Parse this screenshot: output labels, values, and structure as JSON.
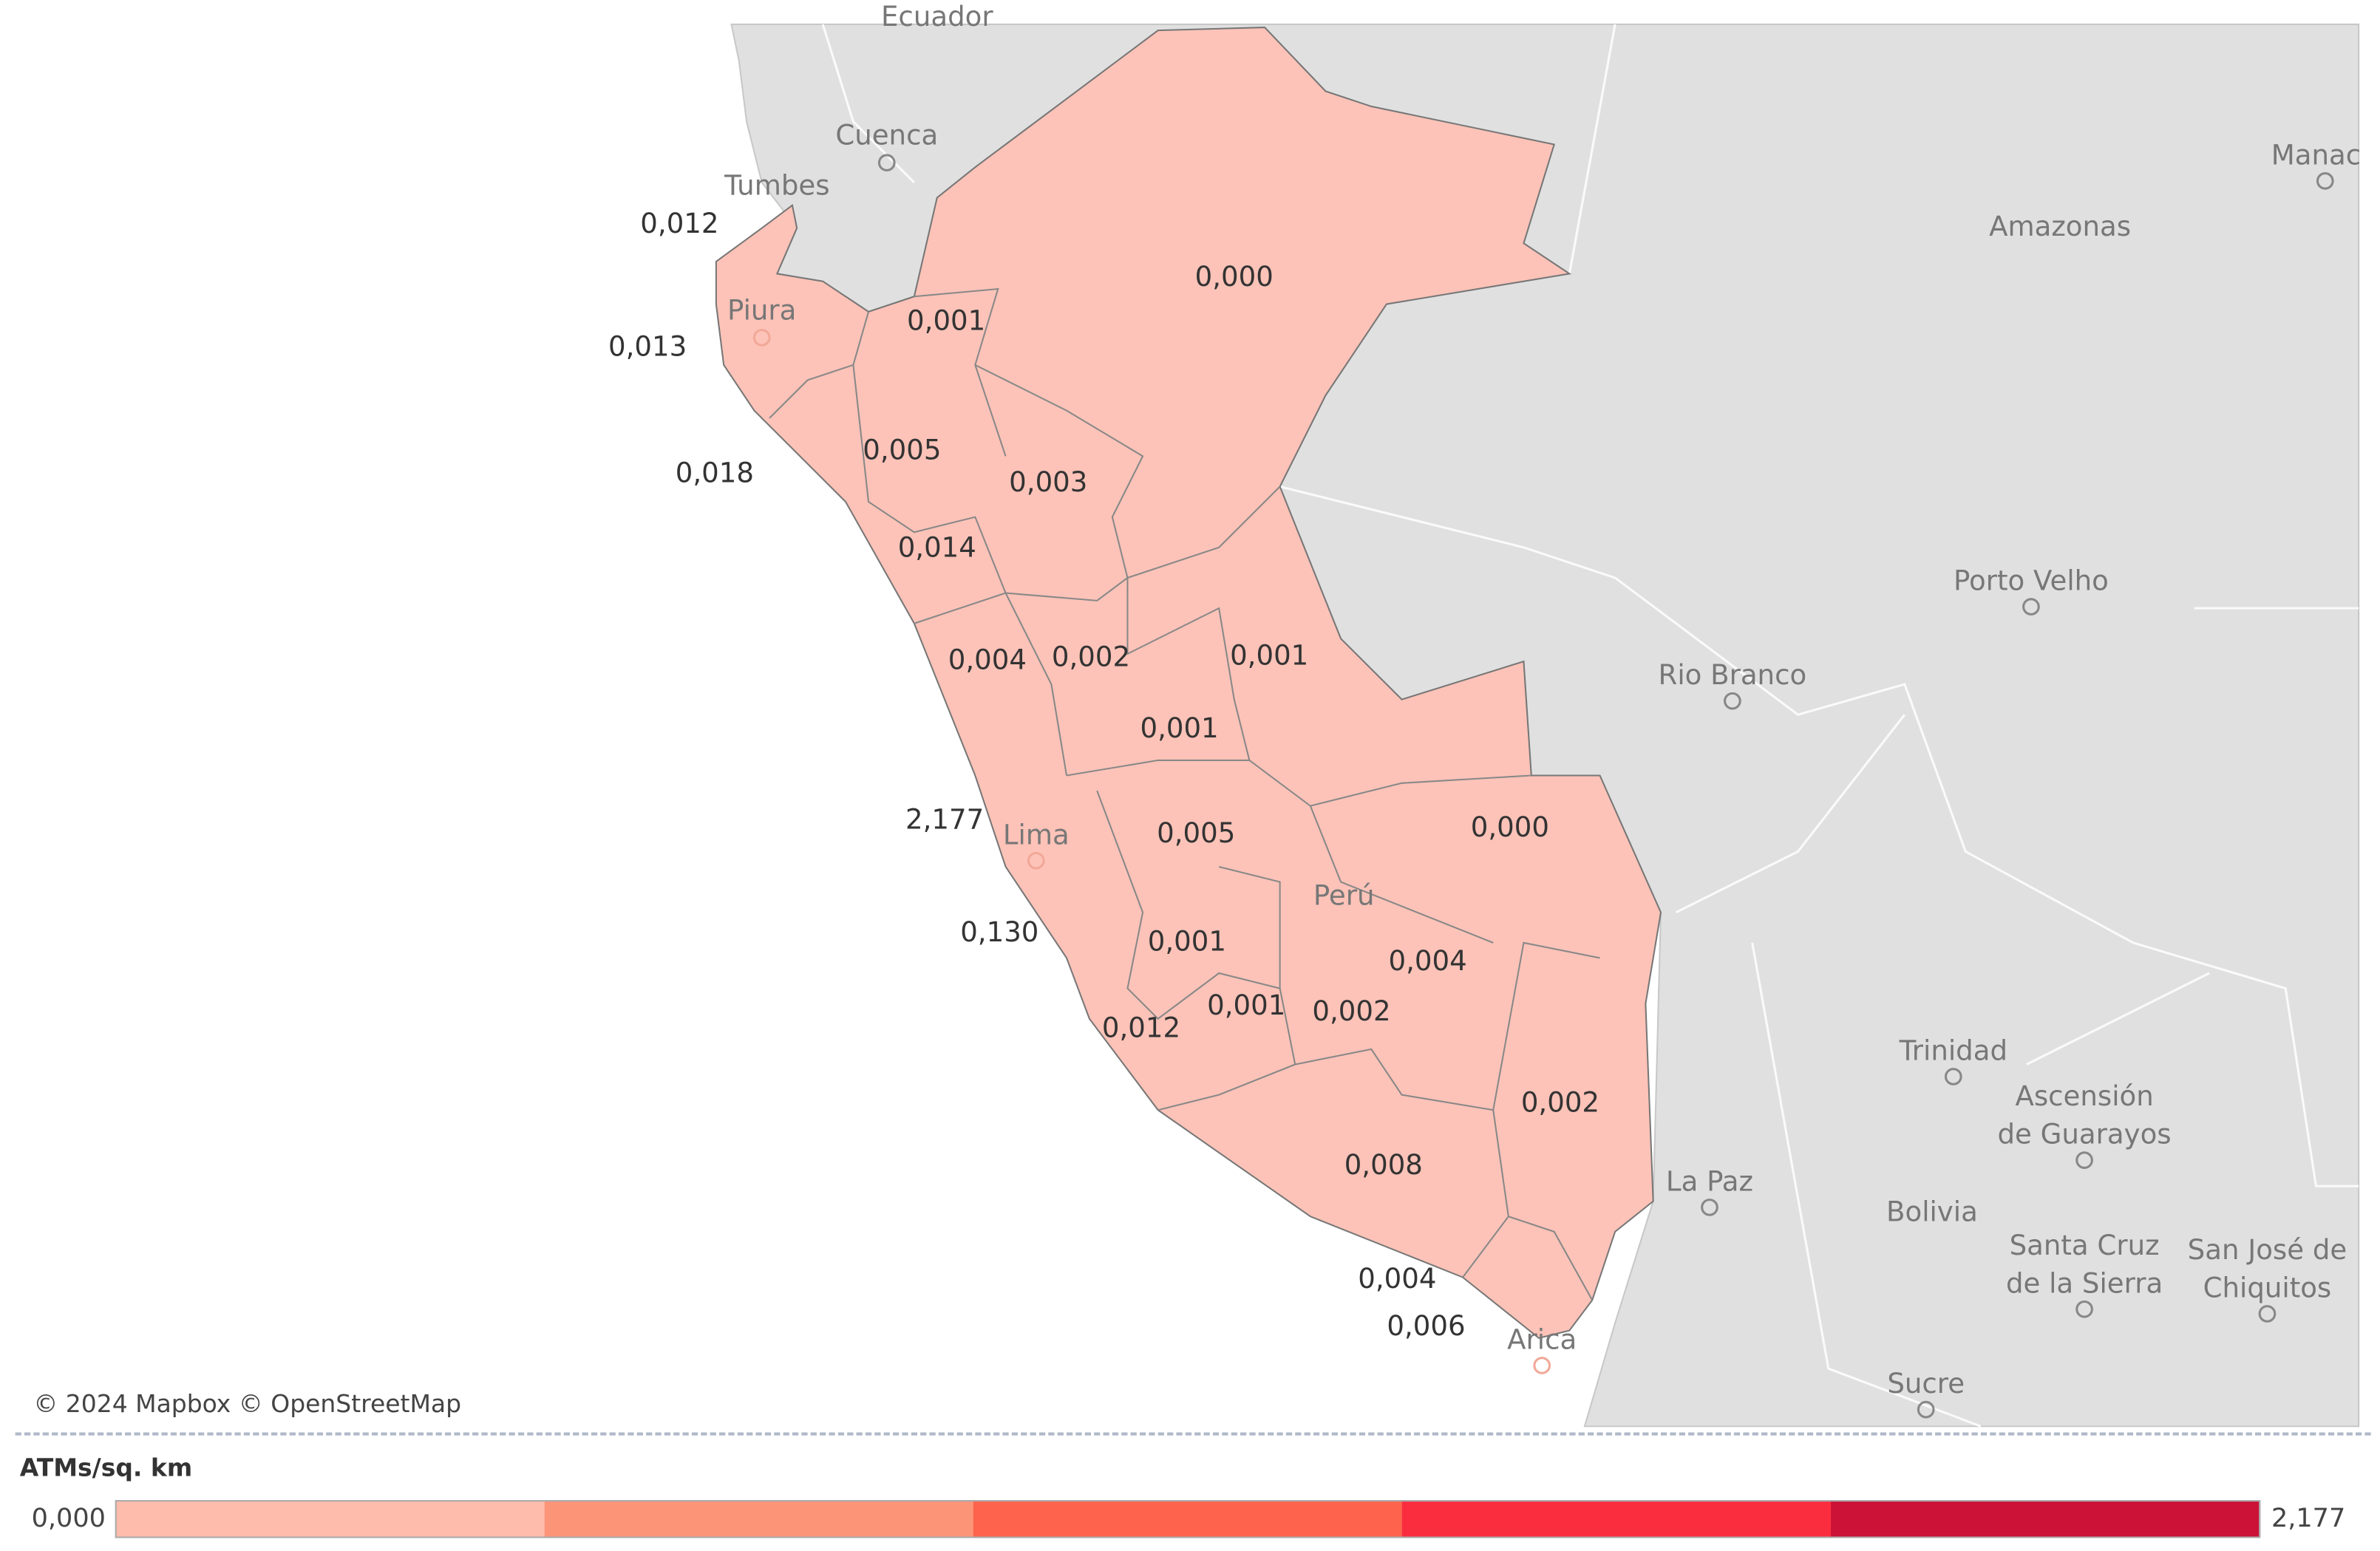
{
  "map": {
    "region_color": "#fdc3b8",
    "regions": [
      {
        "label": "0,012"
      },
      {
        "label": "0,013"
      },
      {
        "label": "0,018"
      },
      {
        "label": "0,001"
      },
      {
        "label": "0,000"
      },
      {
        "label": "0,005"
      },
      {
        "label": "0,003"
      },
      {
        "label": "0,014"
      },
      {
        "label": "0,004"
      },
      {
        "label": "0,002"
      },
      {
        "label": "0,001"
      },
      {
        "label": "0,001"
      },
      {
        "label": "2,177"
      },
      {
        "label": "0,005"
      },
      {
        "label": "0,000"
      },
      {
        "label": "0,130"
      },
      {
        "label": "0,001"
      },
      {
        "label": "0,004"
      },
      {
        "label": "0,001"
      },
      {
        "label": "0,002"
      },
      {
        "label": "0,012"
      },
      {
        "label": "0,002"
      },
      {
        "label": "0,008"
      },
      {
        "label": "0,004"
      },
      {
        "label": "0,006"
      }
    ],
    "places": [
      "Ecuador",
      "Cuenca",
      "Tumbes",
      "Manac",
      "Amazonas",
      "Porto Velho",
      "Rio Branco",
      "Perú",
      "Trinidad",
      "Ascensión",
      "de Guarayos",
      "La Paz",
      "Bolivia",
      "Santa Cruz",
      "de la Sierra",
      "San José de",
      "Chiquitos",
      "Sucre",
      "Arica",
      "Piura",
      "Lima"
    ],
    "attribution": "© 2024 Mapbox © OpenStreetMap"
  },
  "legend": {
    "title": "ATMs/sq. km",
    "min_label": "0,000",
    "max_label": "2,177",
    "colors": [
      "#fdbcac",
      "#fc9478",
      "#fd634d",
      "#fa2d3f",
      "#cc1237"
    ]
  }
}
